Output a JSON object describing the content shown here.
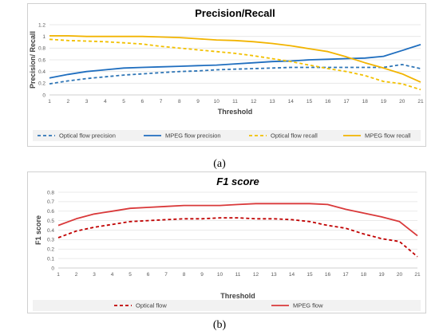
{
  "captions": {
    "a": "(a)",
    "b": "(b)"
  },
  "chart_data": [
    {
      "type": "line",
      "title": "Precision/Recall",
      "xlabel": "Threshold",
      "ylabel": "Precision/ Recall",
      "xlim": [
        1,
        21
      ],
      "ylim": [
        0,
        1.2
      ],
      "yticks": [
        0,
        0.2,
        0.4,
        0.6,
        0.8,
        1,
        1.2
      ],
      "ytick_labels": [
        "0",
        "0.2",
        "0.4",
        "0.6",
        "0.8",
        "1",
        "1.2"
      ],
      "x": [
        1,
        2,
        3,
        4,
        5,
        6,
        7,
        8,
        9,
        10,
        11,
        12,
        13,
        14,
        15,
        16,
        17,
        18,
        19,
        20,
        21
      ],
      "grid": "horizontal",
      "legend_position": "bottom",
      "series": [
        {
          "name": "Optical flow precision",
          "color": "#2e75b6",
          "dash": true,
          "values": [
            0.19,
            0.24,
            0.28,
            0.31,
            0.34,
            0.36,
            0.38,
            0.4,
            0.41,
            0.43,
            0.44,
            0.45,
            0.46,
            0.47,
            0.47,
            0.47,
            0.47,
            0.47,
            0.47,
            0.52,
            0.45
          ]
        },
        {
          "name": "MPEG flow precision",
          "color": "#1f6ebf",
          "dash": false,
          "values": [
            0.29,
            0.35,
            0.4,
            0.43,
            0.46,
            0.47,
            0.48,
            0.49,
            0.5,
            0.51,
            0.53,
            0.55,
            0.57,
            0.58,
            0.6,
            0.61,
            0.62,
            0.63,
            0.66,
            0.76,
            0.86
          ]
        },
        {
          "name": "Optical flow recall",
          "color": "#f2c000",
          "dash": true,
          "values": [
            0.95,
            0.93,
            0.92,
            0.91,
            0.89,
            0.87,
            0.83,
            0.8,
            0.77,
            0.74,
            0.71,
            0.67,
            0.62,
            0.57,
            0.51,
            0.45,
            0.4,
            0.33,
            0.23,
            0.19,
            0.09
          ]
        },
        {
          "name": "MPEG flow recall",
          "color": "#f2b400",
          "dash": false,
          "values": [
            1.01,
            1.01,
            1.0,
            1.0,
            1.0,
            1.0,
            0.99,
            0.98,
            0.96,
            0.94,
            0.93,
            0.91,
            0.88,
            0.84,
            0.79,
            0.74,
            0.65,
            0.55,
            0.46,
            0.36,
            0.22
          ]
        }
      ]
    },
    {
      "type": "line",
      "title": "F1 score",
      "xlabel": "Threshold",
      "ylabel": "F1 score",
      "xlim": [
        1,
        21
      ],
      "ylim": [
        0,
        0.8
      ],
      "yticks": [
        0,
        0.1,
        0.2,
        0.3,
        0.4,
        0.5,
        0.6,
        0.7,
        0.8
      ],
      "ytick_labels": [
        "0",
        "0.1",
        "0.2",
        "0.3",
        "0.4",
        "0.5",
        "0.6",
        "0.7",
        "0.8"
      ],
      "x": [
        1,
        2,
        3,
        4,
        5,
        6,
        7,
        8,
        9,
        10,
        11,
        12,
        13,
        14,
        15,
        16,
        17,
        18,
        19,
        20,
        21
      ],
      "grid": "horizontal",
      "legend_position": "bottom",
      "series": [
        {
          "name": "Optical flow",
          "color": "#c00000",
          "dash": true,
          "values": [
            0.32,
            0.39,
            0.43,
            0.46,
            0.49,
            0.5,
            0.51,
            0.52,
            0.52,
            0.53,
            0.53,
            0.52,
            0.52,
            0.51,
            0.49,
            0.45,
            0.42,
            0.36,
            0.31,
            0.28,
            0.12
          ]
        },
        {
          "name": "MPEG flow",
          "color": "#d9393a",
          "dash": false,
          "values": [
            0.45,
            0.52,
            0.57,
            0.6,
            0.63,
            0.64,
            0.65,
            0.66,
            0.66,
            0.66,
            0.67,
            0.68,
            0.68,
            0.68,
            0.68,
            0.67,
            0.62,
            0.58,
            0.54,
            0.49,
            0.34
          ]
        }
      ]
    }
  ]
}
